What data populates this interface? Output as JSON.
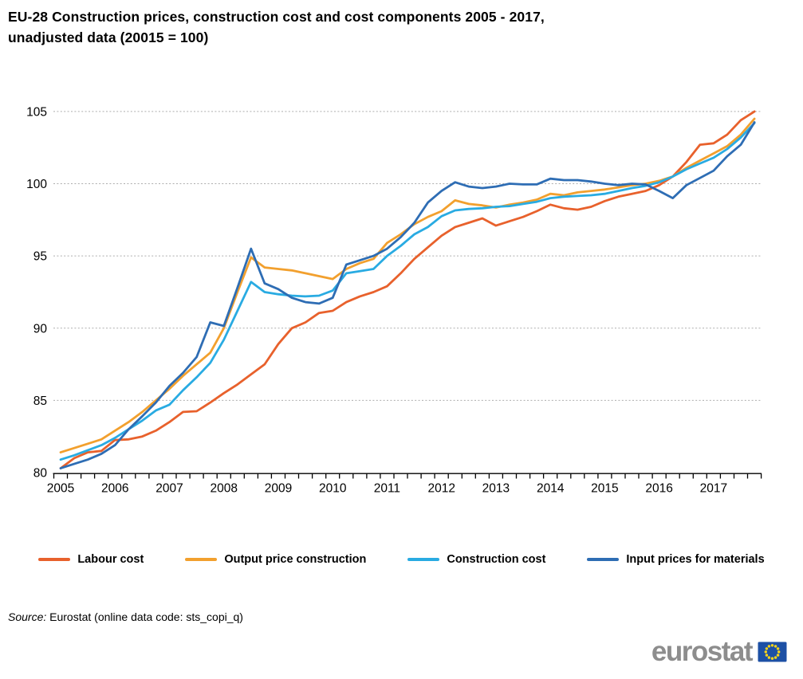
{
  "title": {
    "line1": "EU-28 Construction prices, construction cost and cost components 2005 - 2017,",
    "line2": "unadjusted data (20015 = 100)"
  },
  "source": {
    "prefix": "Source:",
    "text": "Eurostat (online data code: sts_copi_q)"
  },
  "logo": {
    "text": "eurostat",
    "flag_color": "#1D50A5",
    "star_color": "#FFD617",
    "text_color": "#8D8D8D"
  },
  "chart_data": {
    "type": "line",
    "title": "EU-28 Construction prices, construction cost and cost components 2005 - 2017, unadjusted data (20015 = 100)",
    "x_unit": "quarterly",
    "x_labels": [
      "2005",
      "2006",
      "2007",
      "2008",
      "2009",
      "2010",
      "2011",
      "2012",
      "2013",
      "2014",
      "2015",
      "2016",
      "2017"
    ],
    "y_ticks": [
      80,
      85,
      90,
      95,
      100,
      105
    ],
    "ylim": [
      80,
      105
    ],
    "grid": "horizontal-dashed",
    "legend_position": "bottom",
    "series": [
      {
        "name": "Labour cost",
        "color": "#E8612C",
        "values": [
          80.3,
          81.0,
          81.4,
          81.5,
          82.25,
          82.3,
          82.5,
          82.9,
          83.5,
          84.2,
          84.25,
          84.85,
          85.5,
          86.1,
          86.8,
          87.5,
          88.9,
          90.0,
          90.4,
          91.05,
          91.2,
          91.8,
          92.2,
          92.5,
          92.9,
          93.8,
          94.8,
          95.6,
          96.4,
          97.0,
          97.3,
          97.6,
          97.1,
          97.4,
          97.7,
          98.1,
          98.55,
          98.3,
          98.2,
          98.4,
          98.8,
          99.1,
          99.3,
          99.5,
          99.9,
          100.5,
          101.5,
          102.7,
          102.8,
          103.4,
          104.4,
          105.0
        ]
      },
      {
        "name": "Output price construction",
        "color": "#F2A02E",
        "values": [
          81.4,
          81.7,
          82.0,
          82.3,
          82.9,
          83.5,
          84.2,
          85.0,
          85.8,
          86.7,
          87.5,
          88.3,
          90.0,
          92.5,
          94.9,
          94.2,
          94.1,
          94.0,
          93.8,
          93.6,
          93.4,
          94.1,
          94.5,
          94.8,
          95.9,
          96.5,
          97.2,
          97.7,
          98.1,
          98.85,
          98.6,
          98.5,
          98.35,
          98.55,
          98.7,
          98.9,
          99.3,
          99.2,
          99.4,
          99.5,
          99.6,
          99.75,
          99.9,
          100.0,
          100.2,
          100.5,
          101.1,
          101.6,
          102.1,
          102.6,
          103.4,
          104.5
        ]
      },
      {
        "name": "Construction cost",
        "color": "#29ABE2",
        "values": [
          80.9,
          81.2,
          81.55,
          81.9,
          82.4,
          83.0,
          83.6,
          84.3,
          84.7,
          85.7,
          86.6,
          87.6,
          89.2,
          91.2,
          93.2,
          92.5,
          92.35,
          92.25,
          92.2,
          92.25,
          92.6,
          93.8,
          93.95,
          94.1,
          95.0,
          95.7,
          96.5,
          97.0,
          97.75,
          98.15,
          98.25,
          98.3,
          98.4,
          98.45,
          98.6,
          98.75,
          99.0,
          99.1,
          99.15,
          99.2,
          99.3,
          99.5,
          99.7,
          99.85,
          100.1,
          100.5,
          101.0,
          101.4,
          101.8,
          102.4,
          103.2,
          104.2
        ]
      },
      {
        "name": "Input prices for materials",
        "color": "#2E6DB4",
        "values": [
          80.3,
          80.6,
          80.9,
          81.3,
          81.9,
          83.0,
          83.9,
          84.85,
          86.0,
          86.9,
          88.0,
          90.4,
          90.15,
          92.8,
          95.5,
          93.1,
          92.7,
          92.1,
          91.8,
          91.7,
          92.1,
          94.4,
          94.7,
          95.0,
          95.5,
          96.3,
          97.3,
          98.7,
          99.5,
          100.1,
          99.8,
          99.7,
          99.8,
          100.0,
          99.95,
          99.95,
          100.35,
          100.25,
          100.25,
          100.15,
          100.0,
          99.9,
          100.0,
          99.95,
          99.5,
          99.0,
          99.9,
          100.4,
          100.9,
          101.9,
          102.7,
          104.25
        ]
      }
    ]
  }
}
